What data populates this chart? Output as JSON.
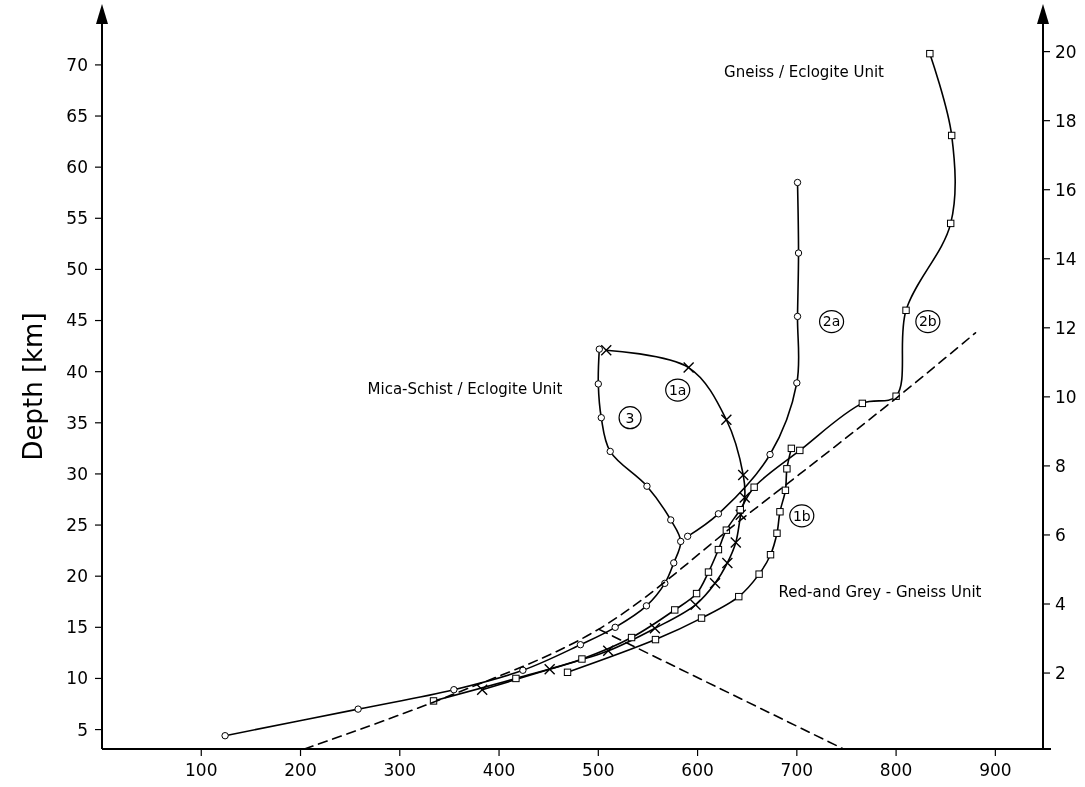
{
  "chart_data": {
    "type": "line",
    "ylabel": "Depth [km]",
    "xlim": [
      0,
      948
    ],
    "xticks": [
      100,
      200,
      300,
      400,
      500,
      600,
      700,
      800,
      900
    ],
    "ylim": [
      3.1,
      74
    ],
    "yticks": [
      5,
      10,
      15,
      20,
      25,
      30,
      35,
      40,
      45,
      50,
      55,
      60,
      65,
      70
    ],
    "y2lim": [
      -0.2,
      20.8
    ],
    "y2ticks": [
      2,
      4,
      6,
      8,
      10,
      12,
      14,
      16,
      18,
      20
    ],
    "series": [
      {
        "color": "#000000",
        "marker": "circle",
        "x": [
          124,
          258,
          354.5,
          424,
          482,
          517,
          548.5,
          567,
          576,
          583,
          573,
          549,
          512,
          503,
          500,
          501
        ],
        "values": [
          4.4,
          7.0,
          8.9,
          10.8,
          13.3,
          15.0,
          17.1,
          19.3,
          21.3,
          23.4,
          25.5,
          28.8,
          32.2,
          35.5,
          38.8,
          42.2
        ]
      },
      {
        "color": "#000000",
        "marker": "cross",
        "x": [
          383,
          451,
          510,
          557,
          598,
          617.6,
          630,
          638.5,
          643.5,
          647.5,
          646,
          629,
          591,
          508
        ],
        "values": [
          8.9,
          10.9,
          12.7,
          14.9,
          17.2,
          19.3,
          21.3,
          23.3,
          26.0,
          27.7,
          29.9,
          35.3,
          40.4,
          42.1
        ]
      },
      {
        "color": "#000000",
        "marker": "square",
        "x": [
          469,
          557.6,
          604,
          641.5,
          662,
          673.5,
          680,
          683,
          688.5,
          690,
          694.5
        ],
        "values": [
          10.6,
          13.8,
          15.9,
          18.0,
          20.2,
          22.1,
          24.2,
          26.3,
          28.4,
          30.5,
          32.5
        ]
      },
      {
        "color": "#000000",
        "marker": "circle",
        "x": [
          590,
          621,
          673,
          700,
          700.7,
          701.7,
          700.7
        ],
        "values": [
          23.9,
          26.1,
          31.9,
          38.9,
          45.4,
          51.6,
          58.5
        ]
      },
      {
        "color": "#000000",
        "marker": "square",
        "x": [
          334,
          417,
          483.5,
          533.5,
          577,
          599,
          611,
          621,
          629,
          643,
          657,
          703,
          766,
          800,
          810,
          855,
          856,
          834
        ],
        "values": [
          7.8,
          10.0,
          11.9,
          14.0,
          16.7,
          18.3,
          20.4,
          22.6,
          24.5,
          26.5,
          28.7,
          32.3,
          36.9,
          37.6,
          46.0,
          54.5,
          63.1,
          71.1
        ]
      },
      {
        "color": "#000000",
        "marker": "none",
        "line_style": "dashed",
        "x": [
          204,
          350,
          500,
          650,
          800,
          880
        ],
        "values": [
          3.1,
          8.3,
          14.8,
          26,
          37.4,
          43.8
        ]
      },
      {
        "color": "#000000",
        "marker": "none",
        "line_style": "dashed",
        "x": [
          500.7,
          747
        ],
        "values": [
          14.8,
          3.1
        ]
      }
    ],
    "annotations": [
      "Mica-Schist / Eclogite Unit",
      "Gneiss / Eclogite Unit",
      "Red-and Grey - Gneiss Unit",
      {
        "text": "1a",
        "x": 580,
        "y": 38.2
      },
      {
        "text": "3",
        "x": 532,
        "y": 35.5
      },
      {
        "text": "2a",
        "x": 735,
        "y": 44.9
      },
      {
        "text": "2b",
        "x": 832,
        "y": 44.9
      },
      {
        "text": "1b",
        "x": 705,
        "y": 25.9
      }
    ]
  }
}
